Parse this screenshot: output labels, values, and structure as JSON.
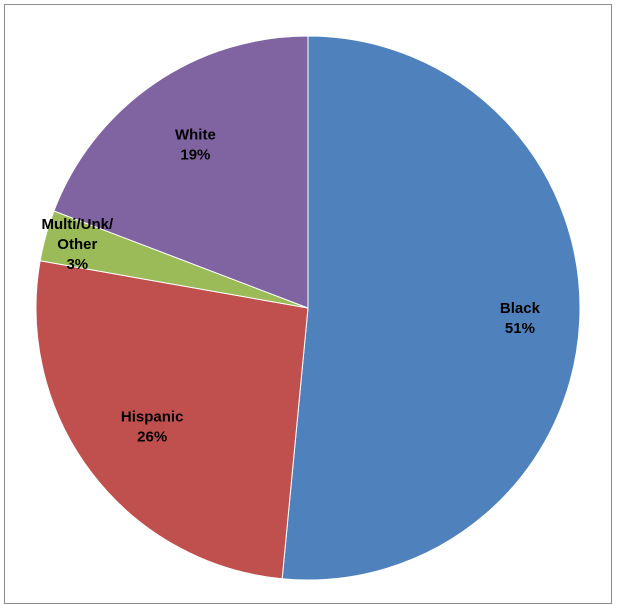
{
  "chart_data": {
    "type": "pie",
    "categories": [
      "Black",
      "Hispanic",
      "Multi/Unk/ Other",
      "White"
    ],
    "values": [
      51,
      26,
      3,
      19
    ],
    "labels": [
      "51%",
      "26%",
      "3%",
      "19%"
    ],
    "colors": [
      "#4f81bd",
      "#c0504d",
      "#9bbb59",
      "#8064a2"
    ],
    "start": "12 o'clock",
    "direction": "clockwise",
    "legend": "none"
  }
}
